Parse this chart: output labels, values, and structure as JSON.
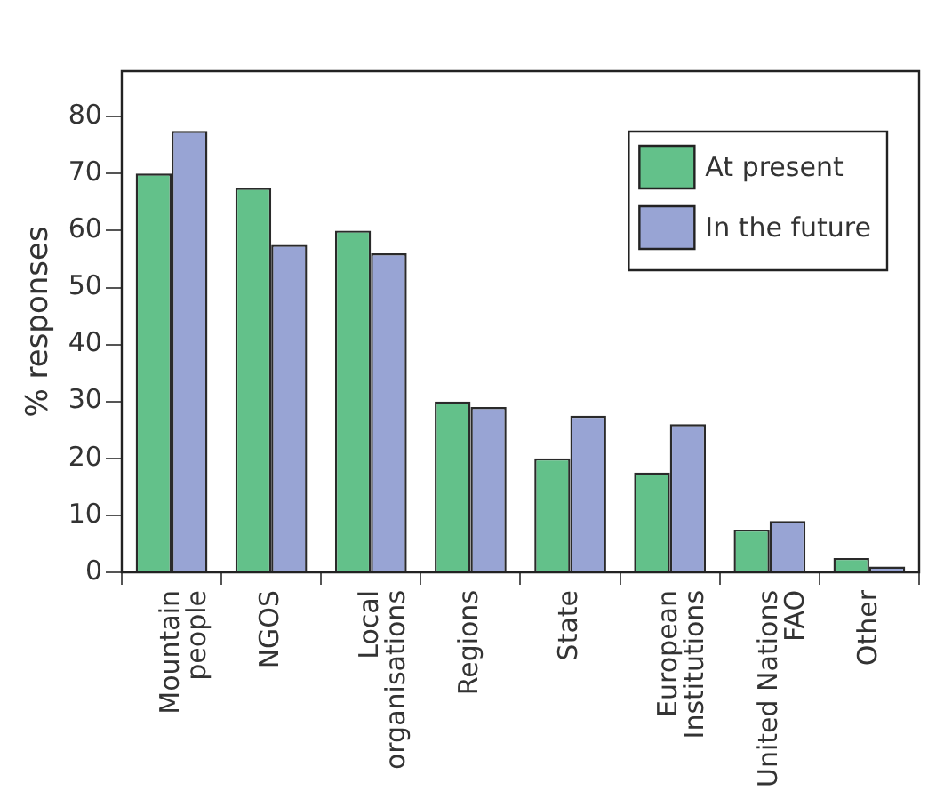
{
  "chart_data": {
    "type": "bar",
    "ylabel": "% responses",
    "categories": [
      "Mountain\npeople",
      "NGOS",
      "Local\norganisations",
      "Regions",
      "State",
      "European\nInstitutions",
      "United Nations\nFAO",
      "Other"
    ],
    "series": [
      {
        "name": "At present",
        "color": "#63c18a",
        "values": [
          70,
          67.5,
          60,
          30,
          20,
          17.5,
          7.5,
          2.5
        ]
      },
      {
        "name": "In the future",
        "color": "#98a4d4",
        "values": [
          77.5,
          57.5,
          56,
          29,
          27.5,
          26,
          9,
          1
        ]
      }
    ],
    "ylim": [
      0,
      88
    ],
    "yticks": [
      0,
      10,
      20,
      30,
      40,
      50,
      60,
      70,
      80
    ],
    "grid": false,
    "legend": "top right"
  }
}
